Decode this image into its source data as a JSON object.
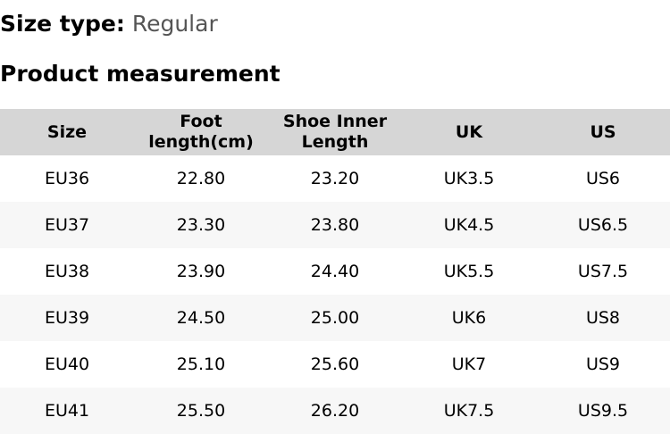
{
  "size_type": {
    "label": "Size type:",
    "value": "Regular"
  },
  "section_title": "Product measurement",
  "table": {
    "headers": [
      [
        "Size",
        ""
      ],
      [
        "Foot",
        "length(cm)"
      ],
      [
        "Shoe Inner",
        "Length"
      ],
      [
        "UK",
        ""
      ],
      [
        "US",
        ""
      ]
    ],
    "rows": [
      [
        "EU36",
        "22.80",
        "23.20",
        "UK3.5",
        "US6"
      ],
      [
        "EU37",
        "23.30",
        "23.80",
        "UK4.5",
        "US6.5"
      ],
      [
        "EU38",
        "23.90",
        "24.40",
        "UK5.5",
        "US7.5"
      ],
      [
        "EU39",
        "24.50",
        "25.00",
        "UK6",
        "US8"
      ],
      [
        "EU40",
        "25.10",
        "25.60",
        "UK7",
        "US9"
      ],
      [
        "EU41",
        "25.50",
        "26.20",
        "UK7.5",
        "US9.5"
      ]
    ]
  }
}
